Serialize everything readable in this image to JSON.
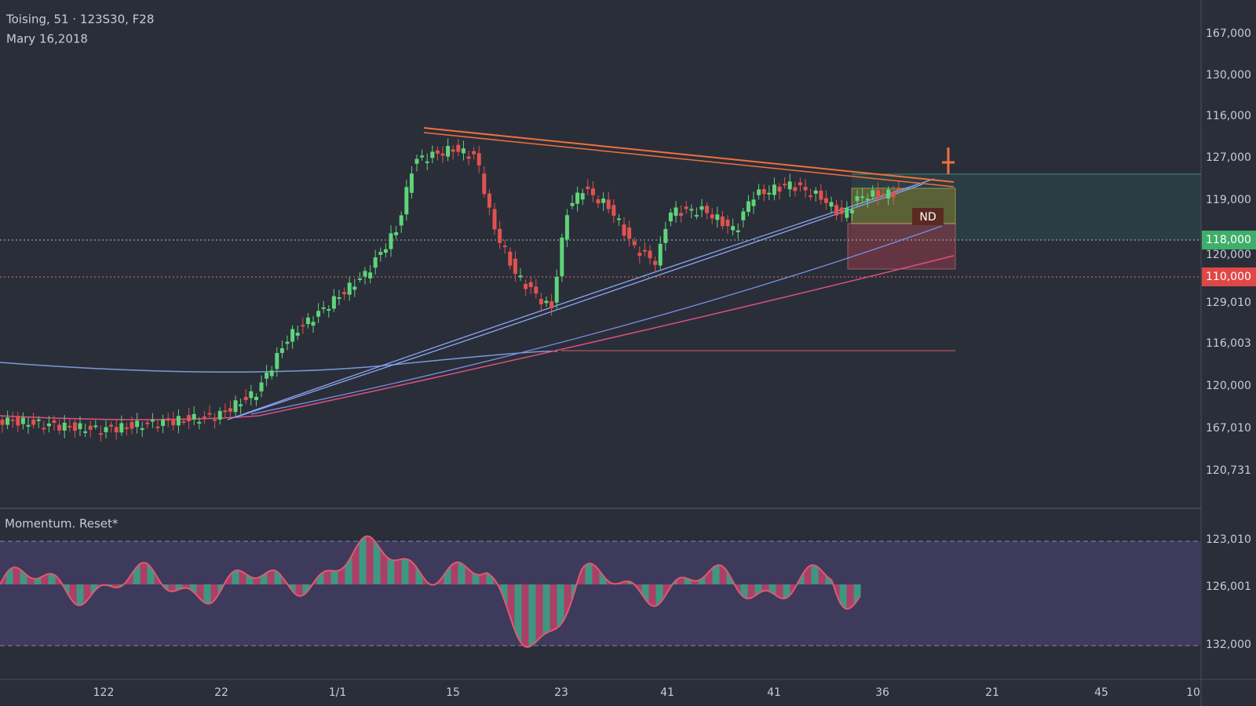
{
  "header": {
    "symbol": "Toising, 51 · 123S30, F28",
    "date": "Mary 16,2018"
  },
  "price_axis": [
    "167,000",
    "130,000",
    "116,000",
    "127,000",
    "119,000",
    "118,000",
    "120,000",
    "110,000",
    "129,010",
    "116,003",
    "120,000",
    "167,010",
    "120,731"
  ],
  "indicator": {
    "name": "Momentum. Reset*",
    "axis": [
      "123,010",
      "126,001",
      "132,000"
    ]
  },
  "time_axis": [
    "122",
    "22",
    "1/1",
    "15",
    "23",
    "41",
    "41",
    "36",
    "21",
    "45",
    "10"
  ],
  "badge": "ND"
}
